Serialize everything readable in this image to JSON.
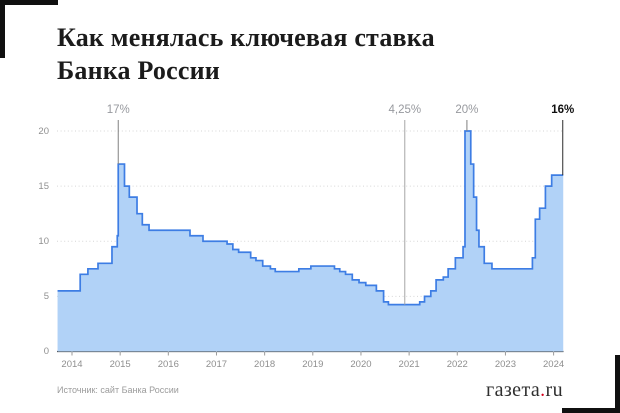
{
  "header": {
    "title_line1": "Как менялась ключевая ставка",
    "title_line2": "Банка России"
  },
  "footer": {
    "source": "Источник: сайт Банка России",
    "logo_name": "газета",
    "logo_dot": ".",
    "logo_tld": "ru"
  },
  "colors": {
    "line_blue": "#3d7de4",
    "fill_blue": "#b1d2f7",
    "grid_gray": "#d6d6d6",
    "axis_dark": "#3d3d3d",
    "label_gray": "#8f8f8f",
    "annotation_gray": "#97999e",
    "logo_dot_red": "#d6001c",
    "corner_black": "#101010"
  },
  "chart_data": {
    "type": "area",
    "step": true,
    "title": "Как менялась ключевая ставка Банка России",
    "xlabel": "",
    "ylabel": "",
    "x_unit": "decimal_year",
    "xlim": [
      2013.7,
      2024.2
    ],
    "ylim": [
      0,
      20
    ],
    "grid": "horizontal-dotted",
    "legend": "none",
    "x_ticks": [
      2014,
      2015,
      2016,
      2017,
      2018,
      2019,
      2020,
      2021,
      2022,
      2023,
      2024
    ],
    "y_ticks": [
      0,
      5,
      10,
      15,
      20
    ],
    "series": [
      {
        "points": [
          [
            2013.7,
            5.5
          ],
          [
            2014.17,
            7.0
          ],
          [
            2014.33,
            7.5
          ],
          [
            2014.54,
            8.0
          ],
          [
            2014.83,
            9.5
          ],
          [
            2014.94,
            10.5
          ],
          [
            2014.96,
            17.0
          ],
          [
            2015.09,
            15.0
          ],
          [
            2015.19,
            14.0
          ],
          [
            2015.35,
            12.5
          ],
          [
            2015.46,
            11.5
          ],
          [
            2015.6,
            11.0
          ],
          [
            2016.45,
            10.5
          ],
          [
            2016.72,
            10.0
          ],
          [
            2017.22,
            9.75
          ],
          [
            2017.34,
            9.25
          ],
          [
            2017.46,
            9.0
          ],
          [
            2017.71,
            8.5
          ],
          [
            2017.82,
            8.25
          ],
          [
            2017.96,
            7.75
          ],
          [
            2018.12,
            7.5
          ],
          [
            2018.22,
            7.25
          ],
          [
            2018.71,
            7.5
          ],
          [
            2018.96,
            7.75
          ],
          [
            2019.45,
            7.5
          ],
          [
            2019.56,
            7.25
          ],
          [
            2019.68,
            7.0
          ],
          [
            2019.82,
            6.5
          ],
          [
            2019.96,
            6.25
          ],
          [
            2020.1,
            6.0
          ],
          [
            2020.32,
            5.5
          ],
          [
            2020.47,
            4.5
          ],
          [
            2020.57,
            4.25
          ],
          [
            2021.22,
            4.5
          ],
          [
            2021.32,
            5.0
          ],
          [
            2021.45,
            5.5
          ],
          [
            2021.56,
            6.5
          ],
          [
            2021.71,
            6.75
          ],
          [
            2021.81,
            7.5
          ],
          [
            2021.96,
            8.5
          ],
          [
            2022.12,
            9.5
          ],
          [
            2022.16,
            20.0
          ],
          [
            2022.28,
            17.0
          ],
          [
            2022.34,
            14.0
          ],
          [
            2022.4,
            11.0
          ],
          [
            2022.45,
            9.5
          ],
          [
            2022.56,
            8.0
          ],
          [
            2022.72,
            7.5
          ],
          [
            2023.56,
            8.5
          ],
          [
            2023.62,
            12.0
          ],
          [
            2023.71,
            13.0
          ],
          [
            2023.83,
            15.0
          ],
          [
            2023.96,
            16.0
          ],
          [
            2024.2,
            16.0
          ]
        ]
      }
    ],
    "annotations": [
      {
        "text": "17%",
        "x": 2014.96,
        "line_to_value": 17,
        "style": "gray",
        "ref": false
      },
      {
        "text": "4,25%",
        "x": 2020.91,
        "line_to_value": 4.25,
        "style": "gray",
        "ref": true
      },
      {
        "text": "20%",
        "x": 2022.2,
        "line_to_value": 20,
        "style": "gray",
        "ref": false
      },
      {
        "text": "16%",
        "x": 2024.19,
        "line_to_value": 16,
        "style": "black-bold",
        "ref": false
      }
    ]
  }
}
